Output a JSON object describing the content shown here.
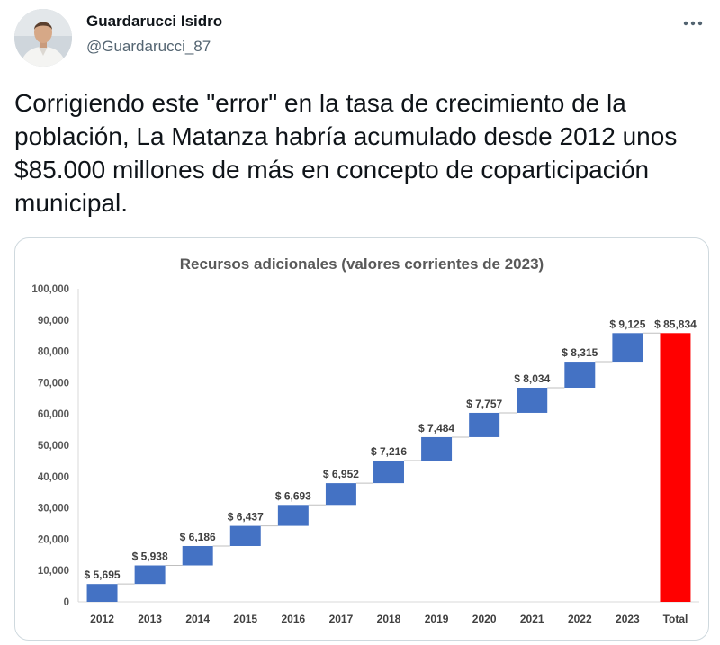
{
  "tweet": {
    "author_name": "Guardarucci Isidro",
    "author_handle": "@Guardarucci_87",
    "text": "Corrigiendo este \"error\" en la tasa de crecimiento de la población, La Matanza habría acumulado desde 2012 unos $85.000 millones de más en concepto de coparticipación municipal.",
    "more_icon": "more-dots-icon"
  },
  "colors": {
    "text": "#0f1419",
    "muted": "#536471",
    "bar": "#4472c4",
    "total_bar": "#ff0000",
    "card_border": "#cfd9de"
  },
  "chart_data": {
    "type": "bar",
    "subtype": "waterfall",
    "title": "Recursos adicionales (valores corrientes de 2023)",
    "categories": [
      "2012",
      "2013",
      "2014",
      "2015",
      "2016",
      "2017",
      "2018",
      "2019",
      "2020",
      "2021",
      "2022",
      "2023",
      "Total"
    ],
    "values": [
      5695,
      5938,
      6186,
      6437,
      6693,
      6952,
      7216,
      7484,
      7757,
      8034,
      8315,
      9125,
      85834
    ],
    "data_labels": [
      "$ 5,695",
      "$ 5,938",
      "$ 6,186",
      "$ 6,437",
      "$ 6,693",
      "$ 6,952",
      "$ 7,216",
      "$ 7,484",
      "$ 7,757",
      "$ 8,034",
      "$ 8,315",
      "$ 9,125",
      "$ 85,834"
    ],
    "y_ticks": [
      "0",
      "10,000",
      "20,000",
      "30,000",
      "40,000",
      "50,000",
      "60,000",
      "70,000",
      "80,000",
      "90,000",
      "100,000"
    ],
    "ylim": [
      0,
      100000
    ],
    "xlabel": "",
    "ylabel": "",
    "grid": false,
    "legend": "none"
  }
}
